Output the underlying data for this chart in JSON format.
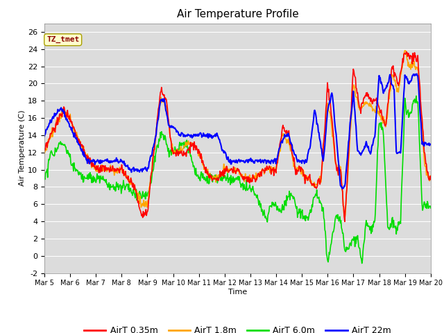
{
  "title": "Air Temperature Profile",
  "xlabel": "Time",
  "ylabel": "Air Temperature (C)",
  "annotation": "TZ_tmet",
  "ylim": [
    -2,
    27
  ],
  "xlim": [
    0,
    360
  ],
  "lines": {
    "AirT 0.35m": {
      "color": "#ff0000",
      "lw": 1.2
    },
    "AirT 1.8m": {
      "color": "#ffa500",
      "lw": 1.2
    },
    "AirT 6.0m": {
      "color": "#00dd00",
      "lw": 1.2
    },
    "AirT 22m": {
      "color": "#0000ff",
      "lw": 1.5
    }
  },
  "xtick_labels": [
    "Mar 5",
    "Mar 6",
    "Mar 7",
    "Mar 8",
    "Mar 9",
    "Mar 10",
    "Mar 11",
    "Mar 12",
    "Mar 13",
    "Mar 14",
    "Mar 15",
    "Mar 16",
    "Mar 17",
    "Mar 18",
    "Mar 19",
    "Mar 20"
  ],
  "ytick_values": [
    -2,
    0,
    2,
    4,
    6,
    8,
    10,
    12,
    14,
    16,
    18,
    20,
    22,
    24,
    26
  ],
  "title_fontsize": 11,
  "axis_label_fontsize": 8,
  "tick_fontsize": 8
}
